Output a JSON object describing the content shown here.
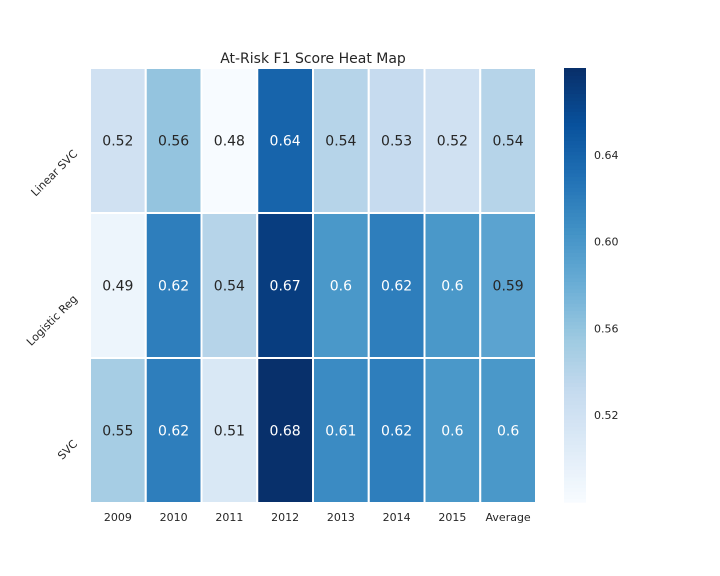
{
  "chart_data": {
    "type": "heatmap",
    "title": "At-Risk F1 Score Heat Map",
    "x_categories": [
      "2009",
      "2010",
      "2011",
      "2012",
      "2013",
      "2014",
      "2015",
      "Average"
    ],
    "y_categories": [
      "Linear SVC",
      "Logistic Reg",
      "SVC"
    ],
    "values": [
      [
        0.52,
        0.56,
        0.48,
        0.64,
        0.54,
        0.53,
        0.52,
        0.54
      ],
      [
        0.49,
        0.62,
        0.54,
        0.67,
        0.6,
        0.62,
        0.6,
        0.59
      ],
      [
        0.55,
        0.62,
        0.51,
        0.68,
        0.61,
        0.62,
        0.6,
        0.6
      ]
    ],
    "colormap": "Blues",
    "colorbar": {
      "min": 0.48,
      "max": 0.68,
      "ticks": [
        "0.52",
        "0.56",
        "0.60",
        "0.64"
      ],
      "tick_values": [
        0.52,
        0.56,
        0.6,
        0.64
      ]
    }
  }
}
